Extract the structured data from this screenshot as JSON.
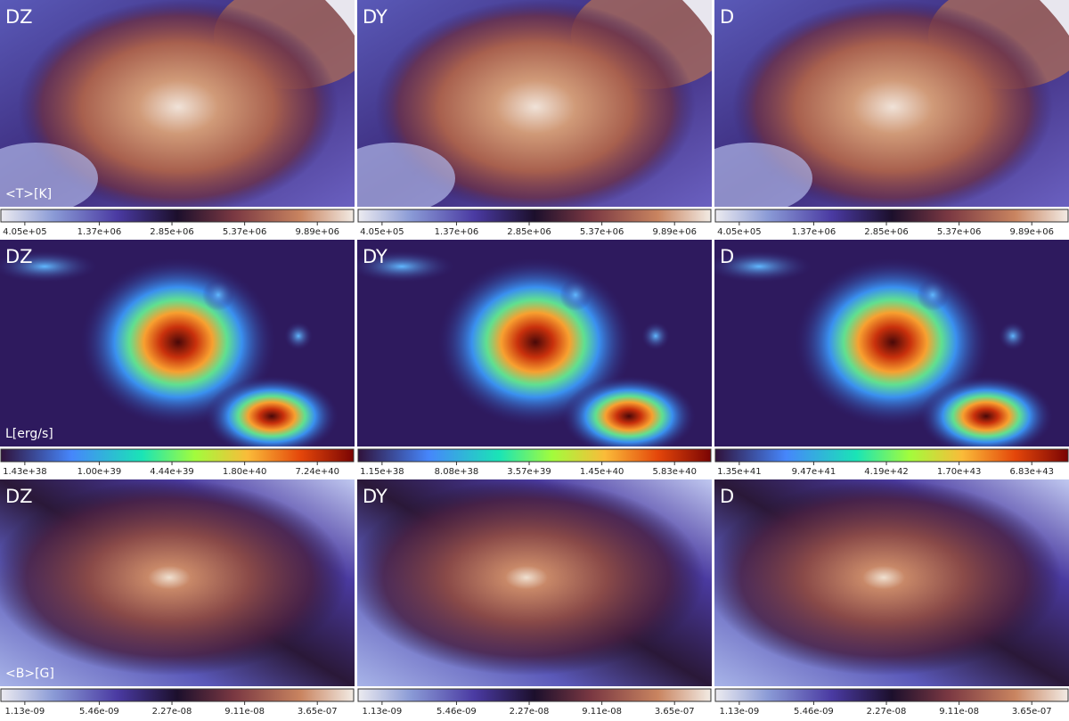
{
  "rows": [
    {
      "quantity": "<T>[K]",
      "panels": [
        {
          "title": "DZ",
          "colorbar_ticks": [
            "4.05e+05",
            "1.37e+06",
            "2.85e+06",
            "5.37e+06",
            "9.89e+06"
          ]
        },
        {
          "title": "DY",
          "colorbar_ticks": [
            "4.05e+05",
            "1.37e+06",
            "2.85e+06",
            "5.37e+06",
            "9.89e+06"
          ]
        },
        {
          "title": "D",
          "colorbar_ticks": [
            "4.05e+05",
            "1.37e+06",
            "2.85e+06",
            "5.37e+06",
            "9.89e+06"
          ]
        }
      ]
    },
    {
      "quantity": "L[erg/s]",
      "panels": [
        {
          "title": "DZ",
          "colorbar_ticks": [
            "1.43e+38",
            "1.00e+39",
            "4.44e+39",
            "1.80e+40",
            "7.24e+40"
          ]
        },
        {
          "title": "DY",
          "colorbar_ticks": [
            "1.15e+38",
            "8.08e+38",
            "3.57e+39",
            "1.45e+40",
            "5.83e+40"
          ]
        },
        {
          "title": "D",
          "colorbar_ticks": [
            "1.35e+41",
            "9.47e+41",
            "4.19e+42",
            "1.70e+43",
            "6.83e+43"
          ]
        }
      ]
    },
    {
      "quantity": "<B>[G]",
      "panels": [
        {
          "title": "DZ",
          "colorbar_ticks": [
            "1.13e-09",
            "5.46e-09",
            "2.27e-08",
            "9.11e-08",
            "3.65e-07"
          ]
        },
        {
          "title": "DY",
          "colorbar_ticks": [
            "1.13e-09",
            "5.46e-09",
            "2.27e-08",
            "9.11e-08",
            "3.65e-07"
          ]
        },
        {
          "title": "D",
          "colorbar_ticks": [
            "1.13e-09",
            "5.46e-09",
            "2.27e-08",
            "9.11e-08",
            "3.65e-07"
          ]
        }
      ]
    }
  ]
}
